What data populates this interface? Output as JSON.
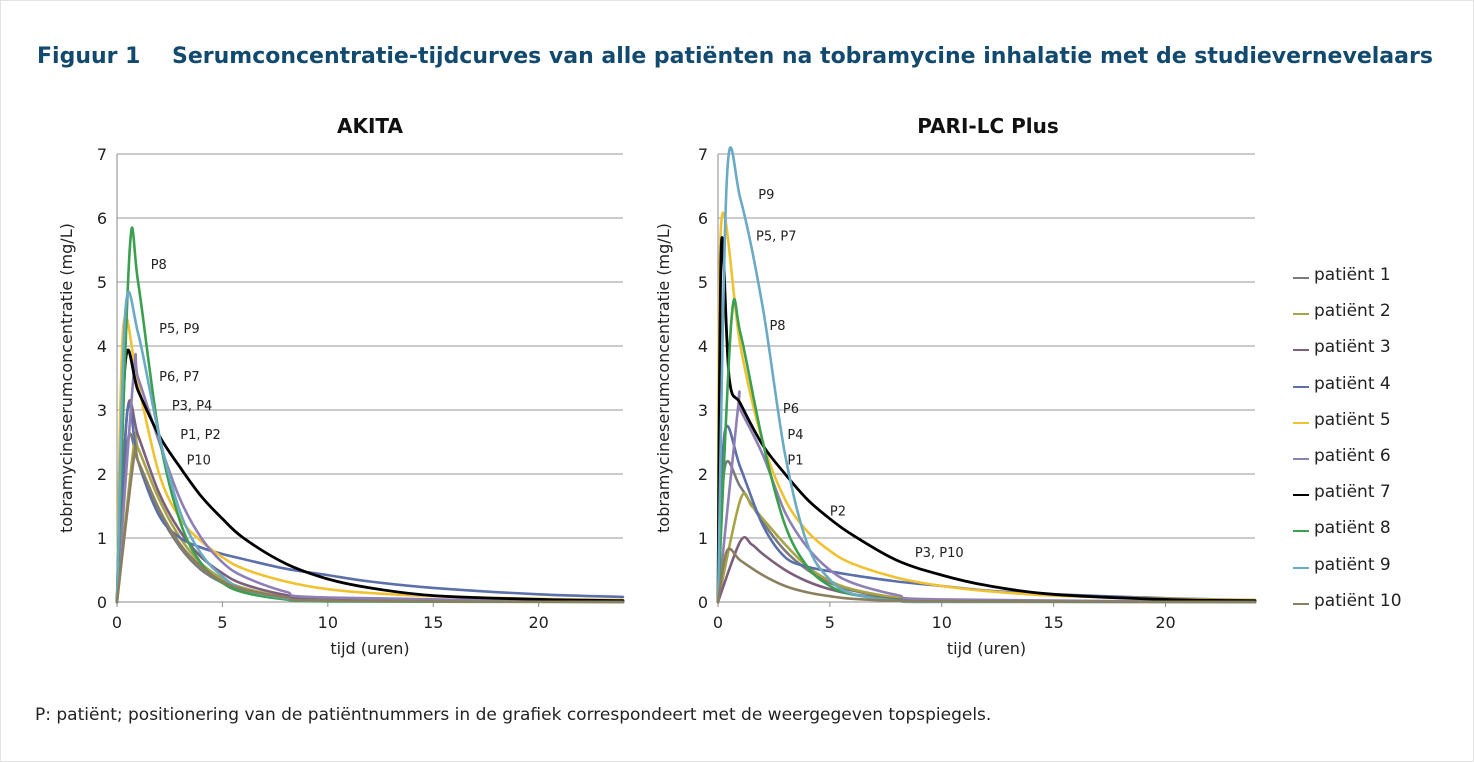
{
  "figure": {
    "number": "Figuur 1",
    "title": "Serumconcentratie-tijdcurves van alle patiënten na tobramycine inhalatie met de studievernevelaars",
    "footnote": "P: patiënt; positionering van de patiëntnummers in de grafiek correspondeert met de weergegeven topspiegels."
  },
  "legend": [
    {
      "label": "patiënt 1",
      "color": "#7b7b7b"
    },
    {
      "label": "patiënt 2",
      "color": "#a7a447"
    },
    {
      "label": "patiënt 3",
      "color": "#7c5f7d"
    },
    {
      "label": "patiënt 4",
      "color": "#5b6faa"
    },
    {
      "label": "patiënt 5",
      "color": "#f0c232"
    },
    {
      "label": "patiënt 6",
      "color": "#8e7fb5"
    },
    {
      "label": "patiënt 7",
      "color": "#000000"
    },
    {
      "label": "patiënt 8",
      "color": "#3aa04f"
    },
    {
      "label": "patiënt 9",
      "color": "#6aaac4"
    },
    {
      "label": "patiënt 10",
      "color": "#8a7f5e"
    }
  ],
  "chart_data": [
    {
      "type": "line",
      "title": "AKITA",
      "xlabel": "tijd (uren)",
      "ylabel": "tobramycineserumconcentratie (mg/L)",
      "xlim": [
        0,
        24
      ],
      "ylim": [
        0,
        7
      ],
      "xticks": [
        0,
        5,
        10,
        15,
        20
      ],
      "yticks": [
        0,
        1,
        2,
        3,
        4,
        5,
        6,
        7
      ],
      "grid": true,
      "series": [
        {
          "name": "patiënt 1",
          "color": "#7b7b7b",
          "x": [
            0,
            0.5,
            1,
            2,
            3,
            4,
            5,
            6,
            8,
            10,
            24
          ],
          "y": [
            0,
            2.5,
            2.2,
            1.4,
            0.85,
            0.5,
            0.3,
            0.18,
            0.07,
            0.03,
            0
          ]
        },
        {
          "name": "patiënt 2",
          "color": "#a7a447",
          "x": [
            0,
            0.8,
            1,
            2,
            3,
            4,
            5,
            6,
            8,
            10,
            24
          ],
          "y": [
            0,
            2.45,
            2.4,
            1.6,
            1.0,
            0.6,
            0.36,
            0.22,
            0.08,
            0.03,
            0
          ]
        },
        {
          "name": "patiënt 3",
          "color": "#7c5f7d",
          "x": [
            0,
            0.5,
            1,
            2,
            3,
            4,
            5,
            6,
            8,
            10,
            24
          ],
          "y": [
            0,
            3.0,
            2.6,
            1.7,
            1.1,
            0.7,
            0.45,
            0.28,
            0.11,
            0.04,
            0
          ]
        },
        {
          "name": "patiënt 4",
          "color": "#5b6faa",
          "x": [
            0,
            0.5,
            1,
            2,
            3,
            4,
            5,
            6,
            8,
            10,
            12,
            15,
            20,
            24
          ],
          "y": [
            0,
            3.0,
            2.2,
            1.35,
            1.0,
            0.85,
            0.75,
            0.67,
            0.52,
            0.42,
            0.32,
            0.22,
            0.12,
            0.08
          ]
        },
        {
          "name": "patiënt 5",
          "color": "#f0c232",
          "x": [
            0,
            0.3,
            1,
            2,
            3,
            4,
            5,
            6,
            8,
            10,
            12,
            15,
            20,
            24
          ],
          "y": [
            0,
            4.3,
            3.4,
            2.0,
            1.3,
            0.95,
            0.7,
            0.52,
            0.32,
            0.2,
            0.14,
            0.09,
            0.05,
            0.03
          ]
        },
        {
          "name": "patiënt 6",
          "color": "#8e7fb5",
          "x": [
            0,
            0.8,
            1,
            2,
            3,
            4,
            5,
            6,
            8,
            10,
            24
          ],
          "y": [
            0,
            3.6,
            3.5,
            2.5,
            1.6,
            1.0,
            0.62,
            0.4,
            0.16,
            0.07,
            0
          ]
        },
        {
          "name": "patiënt 7",
          "color": "#000000",
          "x": [
            0,
            0.4,
            1,
            2,
            3,
            4,
            5,
            6,
            8,
            10,
            12,
            15,
            20,
            24
          ],
          "y": [
            0,
            3.75,
            3.3,
            2.6,
            2.1,
            1.65,
            1.3,
            1.0,
            0.6,
            0.36,
            0.22,
            0.1,
            0.04,
            0.02
          ]
        },
        {
          "name": "patiënt 8",
          "color": "#3aa04f",
          "x": [
            0,
            0.6,
            1,
            2,
            3,
            4,
            5,
            6,
            8,
            10,
            24
          ],
          "y": [
            0,
            5.5,
            5.0,
            2.6,
            1.25,
            0.6,
            0.3,
            0.15,
            0.04,
            0.01,
            0
          ]
        },
        {
          "name": "patiënt 9",
          "color": "#6aaac4",
          "x": [
            0,
            0.4,
            1,
            2,
            3,
            4,
            5,
            6,
            8,
            10,
            24
          ],
          "y": [
            0,
            4.55,
            4.2,
            2.6,
            1.4,
            0.75,
            0.4,
            0.2,
            0.06,
            0.02,
            0
          ]
        },
        {
          "name": "patiënt 10",
          "color": "#8a7f5e",
          "x": [
            0,
            0.8,
            1,
            2,
            3,
            4,
            5,
            6,
            8,
            10,
            24
          ],
          "y": [
            0,
            2.25,
            2.2,
            1.45,
            0.9,
            0.55,
            0.32,
            0.2,
            0.07,
            0.02,
            0
          ]
        }
      ],
      "annotations": [
        {
          "text": "P8",
          "x": 1.6,
          "y": 5.2
        },
        {
          "text": "P5, P9",
          "x": 2.0,
          "y": 4.2
        },
        {
          "text": "P6, P7",
          "x": 2.0,
          "y": 3.45
        },
        {
          "text": "P3, P4",
          "x": 2.6,
          "y": 3.0
        },
        {
          "text": "P1, P2",
          "x": 3.0,
          "y": 2.55
        },
        {
          "text": "P10",
          "x": 3.3,
          "y": 2.15
        }
      ]
    },
    {
      "type": "line",
      "title": "PARI-LC Plus",
      "xlabel": "tijd (uren)",
      "ylabel": "tobramycineserumconcentratie (mg/L)",
      "xlim": [
        0,
        24
      ],
      "ylim": [
        0,
        7
      ],
      "xticks": [
        0,
        5,
        10,
        15,
        20
      ],
      "yticks": [
        0,
        1,
        2,
        3,
        4,
        5,
        6,
        7
      ],
      "grid": true,
      "series": [
        {
          "name": "patiënt 1",
          "color": "#7b7b7b",
          "x": [
            0,
            0.3,
            1,
            2,
            3,
            4,
            5,
            6,
            8,
            10,
            24
          ],
          "y": [
            0,
            2.1,
            1.8,
            1.25,
            0.8,
            0.5,
            0.3,
            0.18,
            0.06,
            0.02,
            0
          ]
        },
        {
          "name": "patiënt 2",
          "color": "#a7a447",
          "x": [
            0,
            1.0,
            1.5,
            2,
            3,
            4,
            5,
            6,
            8,
            10,
            24
          ],
          "y": [
            0,
            1.6,
            1.5,
            1.3,
            0.9,
            0.55,
            0.33,
            0.2,
            0.07,
            0.02,
            0
          ]
        },
        {
          "name": "patiënt 3",
          "color": "#7c5f7d",
          "x": [
            0,
            1.0,
            1.5,
            2,
            3,
            4,
            5,
            6,
            8,
            10,
            24
          ],
          "y": [
            0,
            0.95,
            0.9,
            0.75,
            0.5,
            0.32,
            0.2,
            0.12,
            0.04,
            0.01,
            0
          ]
        },
        {
          "name": "patiënt 4",
          "color": "#5b6faa",
          "x": [
            0,
            0.3,
            1,
            2,
            3,
            4,
            5,
            6,
            8,
            10,
            12,
            15,
            20,
            24
          ],
          "y": [
            0,
            2.65,
            2.1,
            1.2,
            0.7,
            0.55,
            0.48,
            0.42,
            0.32,
            0.25,
            0.18,
            0.12,
            0.06,
            0.03
          ]
        },
        {
          "name": "patiënt 5",
          "color": "#f0c232",
          "x": [
            0,
            0.15,
            1,
            2,
            3,
            4,
            5,
            6,
            8,
            10,
            12,
            15,
            20,
            24
          ],
          "y": [
            0,
            5.95,
            4.0,
            2.5,
            1.6,
            1.1,
            0.8,
            0.6,
            0.38,
            0.25,
            0.17,
            0.1,
            0.05,
            0.03
          ]
        },
        {
          "name": "patiënt 6",
          "color": "#8e7fb5",
          "x": [
            0,
            0.9,
            1,
            2,
            3,
            4,
            5,
            6,
            8,
            10,
            24
          ],
          "y": [
            0,
            3.05,
            3.0,
            2.3,
            1.4,
            0.85,
            0.5,
            0.3,
            0.11,
            0.04,
            0
          ]
        },
        {
          "name": "patiënt 7",
          "color": "#000000",
          "x": [
            0,
            0.15,
            0.5,
            1,
            2,
            3,
            4,
            5,
            6,
            8,
            10,
            12,
            15,
            20,
            24
          ],
          "y": [
            0,
            5.6,
            3.5,
            3.1,
            2.45,
            2.0,
            1.6,
            1.3,
            1.05,
            0.65,
            0.42,
            0.26,
            0.12,
            0.04,
            0.02
          ]
        },
        {
          "name": "patiënt 8",
          "color": "#3aa04f",
          "x": [
            0,
            0.6,
            1,
            2,
            3,
            4,
            5,
            6,
            8,
            10,
            24
          ],
          "y": [
            0,
            4.4,
            4.2,
            2.5,
            1.2,
            0.55,
            0.25,
            0.12,
            0.03,
            0.01,
            0
          ]
        },
        {
          "name": "patiënt 9",
          "color": "#6aaac4",
          "x": [
            0,
            0.4,
            1,
            2,
            3,
            4,
            5,
            6,
            8,
            10,
            24
          ],
          "y": [
            0,
            6.65,
            6.3,
            4.6,
            2.3,
            0.9,
            0.35,
            0.13,
            0.02,
            0,
            0
          ]
        },
        {
          "name": "patiënt 10",
          "color": "#8a7f5e",
          "x": [
            0,
            0.4,
            1,
            2,
            3,
            4,
            5,
            6,
            8,
            10,
            24
          ],
          "y": [
            0,
            0.8,
            0.65,
            0.42,
            0.25,
            0.15,
            0.09,
            0.05,
            0.02,
            0.01,
            0
          ]
        }
      ],
      "annotations": [
        {
          "text": "P9",
          "x": 1.8,
          "y": 6.3
        },
        {
          "text": "P5, P7",
          "x": 1.7,
          "y": 5.65
        },
        {
          "text": "P8",
          "x": 2.3,
          "y": 4.25
        },
        {
          "text": "P6",
          "x": 2.9,
          "y": 2.95
        },
        {
          "text": "P4",
          "x": 3.1,
          "y": 2.55
        },
        {
          "text": "P1",
          "x": 3.1,
          "y": 2.15
        },
        {
          "text": "P2",
          "x": 5.0,
          "y": 1.35
        },
        {
          "text": "P3, P10",
          "x": 8.8,
          "y": 0.7
        }
      ]
    }
  ]
}
